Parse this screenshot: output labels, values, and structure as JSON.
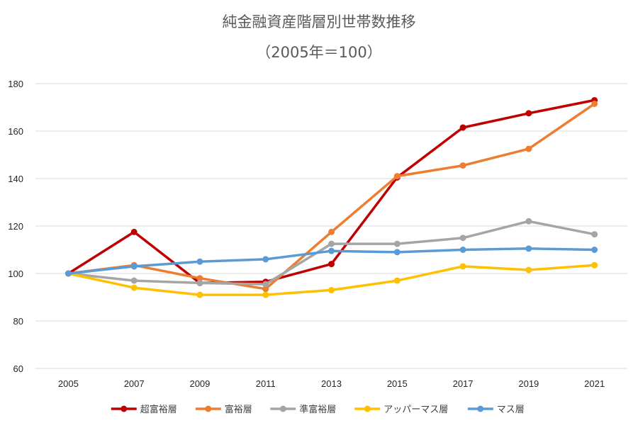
{
  "chart_data": {
    "type": "line",
    "title": "純金融資産階層別世帯数推移",
    "subtitle": "（2005年＝100）",
    "xlabel": "",
    "ylabel": "",
    "categories": [
      "2005",
      "2007",
      "2009",
      "2011",
      "2013",
      "2015",
      "2017",
      "2019",
      "2021"
    ],
    "ylim": [
      60,
      180
    ],
    "yticks": [
      60,
      80,
      100,
      120,
      140,
      160,
      180
    ],
    "grid": true,
    "legend_position": "bottom",
    "series": [
      {
        "name": "超富裕層",
        "color": "#c00000",
        "values": [
          100,
          117.5,
          96,
          96.5,
          104,
          140.5,
          161.5,
          167.5,
          173
        ]
      },
      {
        "name": "富裕層",
        "color": "#ed7d31",
        "values": [
          100,
          103.5,
          98,
          93.5,
          117.5,
          141,
          145.5,
          152.5,
          171.5
        ]
      },
      {
        "name": "準富裕層",
        "color": "#a5a5a5",
        "values": [
          100,
          97,
          96,
          95.5,
          112.5,
          112.5,
          115,
          122,
          116.5
        ]
      },
      {
        "name": "アッパーマス層",
        "color": "#ffc000",
        "values": [
          100,
          94,
          91,
          91,
          93,
          97,
          103,
          101.5,
          103.5
        ]
      },
      {
        "name": "マス層",
        "color": "#5b9bd5",
        "values": [
          100,
          103,
          105,
          106,
          109.5,
          109,
          110,
          110.5,
          110
        ]
      }
    ]
  }
}
